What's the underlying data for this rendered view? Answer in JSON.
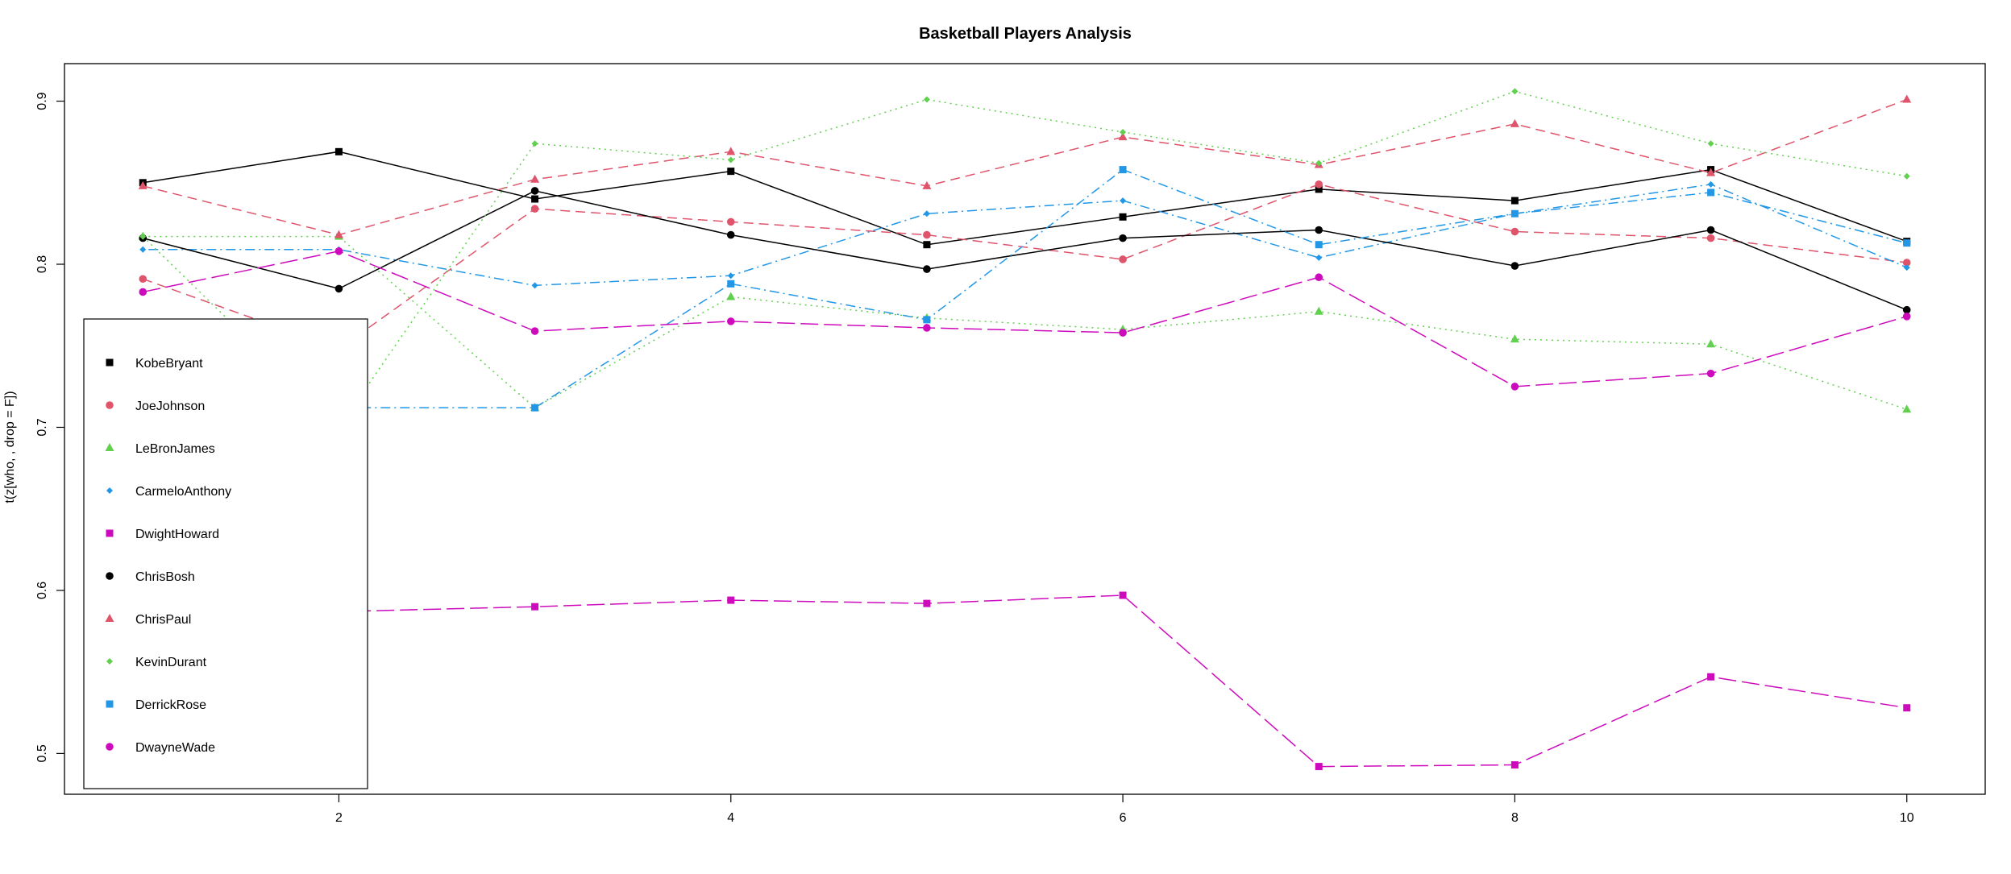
{
  "chart_data": {
    "type": "line",
    "title": "Basketball Players Analysis",
    "xlabel": "",
    "ylabel": "t(z[who, , drop = F])",
    "xlim": [
      0.6,
      10.4
    ],
    "ylim": [
      0.475,
      0.923
    ],
    "x": [
      1,
      2,
      3,
      4,
      5,
      6,
      7,
      8,
      9,
      10
    ],
    "x_ticks": [
      2,
      4,
      6,
      8,
      10
    ],
    "y_ticks": [
      0.5,
      0.6,
      0.7,
      0.8,
      0.9
    ],
    "x_tick_labels": [
      "2",
      "4",
      "6",
      "8",
      "10"
    ],
    "y_tick_labels": [
      "0.5",
      "0.6",
      "0.7",
      "0.8",
      "0.9"
    ],
    "grid": false,
    "legend_position": "left",
    "series": [
      {
        "name": "KobeBryant",
        "color": "#000000",
        "marker": "square",
        "dash": "solid",
        "values": [
          0.85,
          0.869,
          0.84,
          0.857,
          0.812,
          0.829,
          0.846,
          0.839,
          0.858,
          0.814
        ]
      },
      {
        "name": "JoeJohnson",
        "color": "#df536b",
        "marker": "circle",
        "dash": "dashed",
        "values": [
          0.791,
          0.748,
          0.834,
          0.826,
          0.818,
          0.803,
          0.849,
          0.82,
          0.816,
          0.801
        ]
      },
      {
        "name": "LeBronJames",
        "color": "#61d04f",
        "marker": "triangle",
        "dash": "dotted",
        "values": [
          0.817,
          0.817,
          0.712,
          0.78,
          0.767,
          0.76,
          0.771,
          0.754,
          0.751,
          0.711
        ]
      },
      {
        "name": "CarmeloAnthony",
        "color": "#2297e6",
        "marker": "diamond",
        "dash": "dotdash",
        "values": [
          0.809,
          0.809,
          0.787,
          0.793,
          0.831,
          0.839,
          0.804,
          0.831,
          0.849,
          0.798
        ]
      },
      {
        "name": "DwightHoward",
        "color": "#cd0bbc",
        "marker": "square",
        "dash": "longdash",
        "values": [
          0.59,
          0.587,
          0.59,
          0.594,
          0.592,
          0.597,
          0.492,
          0.493,
          0.547,
          0.528
        ]
      },
      {
        "name": "ChrisBosh",
        "color": "#000000",
        "marker": "circle",
        "dash": "solid",
        "values": [
          0.816,
          0.785,
          0.845,
          0.818,
          0.797,
          0.816,
          0.821,
          0.799,
          0.821,
          0.772
        ]
      },
      {
        "name": "ChrisPaul",
        "color": "#df536b",
        "marker": "triangle",
        "dash": "dashed",
        "values": [
          0.848,
          0.818,
          0.852,
          0.869,
          0.848,
          0.878,
          0.861,
          0.886,
          0.856,
          0.901
        ]
      },
      {
        "name": "KevinDurant",
        "color": "#61d04f",
        "marker": "diamond",
        "dash": "dotted",
        "values": [
          0.817,
          0.7,
          0.874,
          0.864,
          0.901,
          0.881,
          0.862,
          0.906,
          0.874,
          0.854
        ]
      },
      {
        "name": "DerrickRose",
        "color": "#2297e6",
        "marker": "square",
        "dash": "dotdash",
        "values": [
          0.712,
          0.712,
          0.712,
          0.788,
          0.766,
          0.858,
          0.812,
          0.831,
          0.844,
          0.813
        ]
      },
      {
        "name": "DwayneWade",
        "color": "#cd0bbc",
        "marker": "circle",
        "dash": "longdash",
        "values": [
          0.783,
          0.808,
          0.759,
          0.765,
          0.761,
          0.758,
          0.792,
          0.725,
          0.733,
          0.768
        ]
      }
    ]
  }
}
